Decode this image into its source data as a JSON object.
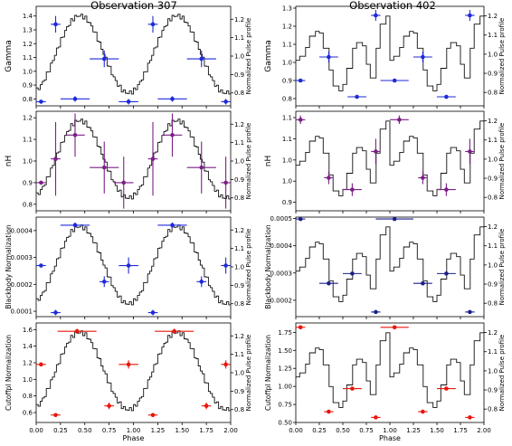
{
  "columns": [
    {
      "title": "Observation 307"
    },
    {
      "title": "Observation 402"
    }
  ],
  "chart_data": [
    {
      "type": "scatter",
      "panel": "obs307-gamma",
      "title": "Observation 307",
      "xlabel": "",
      "ylabel": "Gamma",
      "y2label": "Normalized Pulse profile",
      "xlim": [
        0,
        2
      ],
      "ylim": [
        0.75,
        1.47
      ],
      "y2lim": [
        0.73,
        1.27
      ],
      "xticks": [],
      "yticks": [
        0.8,
        0.9,
        1.0,
        1.1,
        1.2,
        1.3,
        1.4
      ],
      "y2ticks": [
        0.8,
        0.9,
        1.0,
        1.1,
        1.2
      ],
      "profile_shape": "sine",
      "color": "#1f2ad9",
      "points": [
        {
          "x": 0.05,
          "y": 0.78,
          "xerr": 0.05,
          "yerr": 0.0
        },
        {
          "x": 0.2,
          "y": 1.34,
          "xerr": 0.05,
          "yerr": 0.06
        },
        {
          "x": 0.4,
          "y": 0.8,
          "xerr": 0.15,
          "yerr": 0.02
        },
        {
          "x": 0.7,
          "y": 1.09,
          "xerr": 0.15,
          "yerr": 0.06
        },
        {
          "x": 0.95,
          "y": 0.78,
          "xerr": 0.1,
          "yerr": 0.02
        },
        {
          "x": 1.2,
          "y": 1.34,
          "xerr": 0.05,
          "yerr": 0.06
        },
        {
          "x": 1.4,
          "y": 0.8,
          "xerr": 0.15,
          "yerr": 0.02
        },
        {
          "x": 1.7,
          "y": 1.09,
          "xerr": 0.15,
          "yerr": 0.06
        },
        {
          "x": 1.95,
          "y": 0.78,
          "xerr": 0.05,
          "yerr": 0.02
        }
      ]
    },
    {
      "type": "scatter",
      "panel": "obs402-gamma",
      "title": "Observation 402",
      "xlabel": "",
      "ylabel": "Gamma",
      "y2label": "Normalized Pulse profile",
      "xlim": [
        0,
        2
      ],
      "ylim": [
        0.76,
        1.31
      ],
      "y2lim": [
        0.73,
        1.25
      ],
      "xticks": [],
      "yticks": [
        0.8,
        0.9,
        1.0,
        1.1,
        1.2,
        1.3
      ],
      "y2ticks": [
        0.8,
        0.9,
        1.0,
        1.1,
        1.2
      ],
      "profile_shape": "steps",
      "color": "#1f2ad9",
      "points": [
        {
          "x": 0.05,
          "y": 0.9,
          "xerr": 0.05,
          "yerr": 0.0
        },
        {
          "x": 0.35,
          "y": 1.03,
          "xerr": 0.1,
          "yerr": 0.03
        },
        {
          "x": 0.65,
          "y": 0.81,
          "xerr": 0.1,
          "yerr": 0.01
        },
        {
          "x": 0.85,
          "y": 1.26,
          "xerr": 0.05,
          "yerr": 0.03
        },
        {
          "x": 1.05,
          "y": 0.9,
          "xerr": 0.15,
          "yerr": 0.0
        },
        {
          "x": 1.35,
          "y": 1.03,
          "xerr": 0.1,
          "yerr": 0.03
        },
        {
          "x": 1.6,
          "y": 0.81,
          "xerr": 0.1,
          "yerr": 0.01
        },
        {
          "x": 1.85,
          "y": 1.26,
          "xerr": 0.05,
          "yerr": 0.03
        }
      ]
    },
    {
      "type": "scatter",
      "panel": "obs307-nh",
      "xlabel": "",
      "ylabel": "nH",
      "y2label": "Normalized Pulse profile",
      "xlim": [
        0,
        2
      ],
      "ylim": [
        0.77,
        1.23
      ],
      "y2lim": [
        0.73,
        1.27
      ],
      "xticks": [],
      "yticks": [
        0.8,
        0.9,
        1.0,
        1.1,
        1.2
      ],
      "y2ticks": [
        0.8,
        0.9,
        1.0,
        1.1,
        1.2
      ],
      "profile_shape": "sine",
      "color": "#7b1f86",
      "points": [
        {
          "x": 0.05,
          "y": 0.9,
          "xerr": 0.05,
          "yerr": 0.0
        },
        {
          "x": 0.2,
          "y": 1.01,
          "xerr": 0.05,
          "yerr": 0.17
        },
        {
          "x": 0.4,
          "y": 1.12,
          "xerr": 0.1,
          "yerr": 0.1
        },
        {
          "x": 0.7,
          "y": 0.97,
          "xerr": 0.15,
          "yerr": 0.12
        },
        {
          "x": 0.9,
          "y": 0.9,
          "xerr": 0.1,
          "yerr": 0.12
        },
        {
          "x": 1.2,
          "y": 1.01,
          "xerr": 0.05,
          "yerr": 0.17
        },
        {
          "x": 1.4,
          "y": 1.12,
          "xerr": 0.1,
          "yerr": 0.1
        },
        {
          "x": 1.7,
          "y": 0.97,
          "xerr": 0.15,
          "yerr": 0.12
        },
        {
          "x": 1.95,
          "y": 0.9,
          "xerr": 0.05,
          "yerr": 0.12
        }
      ]
    },
    {
      "type": "scatter",
      "panel": "obs402-nh",
      "xlabel": "",
      "ylabel": "nH",
      "y2label": "Normalized Pulse profile",
      "xlim": [
        0,
        2
      ],
      "ylim": [
        0.88,
        1.115
      ],
      "y2lim": [
        0.73,
        1.25
      ],
      "xticks": [],
      "yticks": [
        0.9,
        0.95,
        1.0,
        1.05,
        1.1
      ],
      "y2ticks": [
        0.8,
        0.9,
        1.0,
        1.1,
        1.2
      ],
      "profile_shape": "steps",
      "color": "#7b1f86",
      "points": [
        {
          "x": 0.05,
          "y": 1.095,
          "xerr": 0.05,
          "yerr": 0.01
        },
        {
          "x": 0.35,
          "y": 0.958,
          "xerr": 0.05,
          "yerr": 0.015
        },
        {
          "x": 0.6,
          "y": 0.93,
          "xerr": 0.1,
          "yerr": 0.015
        },
        {
          "x": 0.85,
          "y": 1.02,
          "xerr": 0.05,
          "yerr": 0.03
        },
        {
          "x": 1.1,
          "y": 1.095,
          "xerr": 0.1,
          "yerr": 0.01
        },
        {
          "x": 1.35,
          "y": 0.958,
          "xerr": 0.05,
          "yerr": 0.015
        },
        {
          "x": 1.6,
          "y": 0.93,
          "xerr": 0.1,
          "yerr": 0.015
        },
        {
          "x": 1.85,
          "y": 1.02,
          "xerr": 0.05,
          "yerr": 0.03
        }
      ]
    },
    {
      "type": "scatter",
      "panel": "obs307-blackbody",
      "xlabel": "",
      "ylabel": "Blackbody Normalization",
      "y2label": "Normalized Pulse profile",
      "xlim": [
        0,
        2
      ],
      "ylim": [
        8e-05,
        0.00045
      ],
      "y2lim": [
        0.73,
        1.27
      ],
      "xticks": [],
      "yticks": [
        0.0001,
        0.0002,
        0.0003,
        0.0004
      ],
      "ytick_labels": [
        "0.0001",
        "0.0002",
        "0.0003",
        "0.0004"
      ],
      "y2ticks": [
        0.8,
        0.9,
        1.0,
        1.1,
        1.2
      ],
      "profile_shape": "sine",
      "color": "#1f2ad9",
      "points": [
        {
          "x": 0.05,
          "y": 0.00027,
          "xerr": 0.05,
          "yerr": 0.0
        },
        {
          "x": 0.2,
          "y": 9.5e-05,
          "xerr": 0.05,
          "yerr": 1e-05
        },
        {
          "x": 0.4,
          "y": 0.00042,
          "xerr": 0.15,
          "yerr": 1e-05
        },
        {
          "x": 0.7,
          "y": 0.00021,
          "xerr": 0.05,
          "yerr": 2e-05
        },
        {
          "x": 0.95,
          "y": 0.00027,
          "xerr": 0.1,
          "yerr": 3e-05
        },
        {
          "x": 1.2,
          "y": 9.5e-05,
          "xerr": 0.05,
          "yerr": 1e-05
        },
        {
          "x": 1.4,
          "y": 0.00042,
          "xerr": 0.15,
          "yerr": 1e-05
        },
        {
          "x": 1.7,
          "y": 0.00021,
          "xerr": 0.05,
          "yerr": 2e-05
        },
        {
          "x": 1.95,
          "y": 0.00027,
          "xerr": 0.05,
          "yerr": 3e-05
        }
      ]
    },
    {
      "type": "scatter",
      "panel": "obs402-blackbody",
      "xlabel": "",
      "ylabel": "Blackbody Normalization",
      "y2label": "Normalized Pulse profile",
      "xlim": [
        0,
        2
      ],
      "ylim": [
        0.00014,
        0.000505
      ],
      "y2lim": [
        0.73,
        1.25
      ],
      "xticks": [],
      "yticks": [
        0.0002,
        0.0003,
        0.0004,
        0.0005
      ],
      "ytick_labels": [
        "0.0002",
        "0.0003",
        "0.0004",
        "0.0005"
      ],
      "y2ticks": [
        0.8,
        0.9,
        1.0,
        1.1,
        1.2
      ],
      "profile_shape": "steps",
      "color": "#1b1f8a",
      "points": [
        {
          "x": 0.05,
          "y": 0.000498,
          "xerr": 0.05,
          "yerr": 0.0
        },
        {
          "x": 0.35,
          "y": 0.000262,
          "xerr": 0.1,
          "yerr": 3e-06
        },
        {
          "x": 0.6,
          "y": 0.000298,
          "xerr": 0.1,
          "yerr": 3e-06
        },
        {
          "x": 0.85,
          "y": 0.000157,
          "xerr": 0.05,
          "yerr": 3e-06
        },
        {
          "x": 1.05,
          "y": 0.000498,
          "xerr": 0.2,
          "yerr": 3e-06
        },
        {
          "x": 1.35,
          "y": 0.000262,
          "xerr": 0.1,
          "yerr": 3e-06
        },
        {
          "x": 1.6,
          "y": 0.000298,
          "xerr": 0.1,
          "yerr": 3e-06
        },
        {
          "x": 1.85,
          "y": 0.000157,
          "xerr": 0.05,
          "yerr": 3e-06
        }
      ]
    },
    {
      "type": "scatter",
      "panel": "obs307-cutoffpl",
      "xlabel": "Phase",
      "ylabel": "Cutoffpl Normalization",
      "y2label": "Normalized Pulse profile",
      "xlim": [
        0,
        2
      ],
      "ylim": [
        0.48,
        1.68
      ],
      "y2lim": [
        0.73,
        1.27
      ],
      "xticks": [
        0.0,
        0.25,
        0.5,
        0.75,
        1.0,
        1.25,
        1.5,
        1.75,
        2.0
      ],
      "xtick_labels": [
        "0.00",
        "0.25",
        "0.50",
        "0.75",
        "1.00",
        "1.25",
        "1.50",
        "1.75",
        "2.00"
      ],
      "yticks": [
        0.6,
        0.8,
        1.0,
        1.2,
        1.4,
        1.6
      ],
      "y2ticks": [
        0.8,
        0.9,
        1.0,
        1.1,
        1.2
      ],
      "profile_shape": "sine",
      "color": "#e8160c",
      "points": [
        {
          "x": 0.05,
          "y": 1.18,
          "xerr": 0.05,
          "yerr": 0.0
        },
        {
          "x": 0.2,
          "y": 0.57,
          "xerr": 0.05,
          "yerr": 0.02
        },
        {
          "x": 0.42,
          "y": 1.58,
          "xerr": 0.2,
          "yerr": 0.03
        },
        {
          "x": 0.75,
          "y": 0.68,
          "xerr": 0.05,
          "yerr": 0.04
        },
        {
          "x": 0.95,
          "y": 1.18,
          "xerr": 0.1,
          "yerr": 0.05
        },
        {
          "x": 1.2,
          "y": 0.57,
          "xerr": 0.05,
          "yerr": 0.02
        },
        {
          "x": 1.42,
          "y": 1.58,
          "xerr": 0.2,
          "yerr": 0.03
        },
        {
          "x": 1.75,
          "y": 0.68,
          "xerr": 0.05,
          "yerr": 0.04
        },
        {
          "x": 1.95,
          "y": 1.18,
          "xerr": 0.05,
          "yerr": 0.05
        }
      ]
    },
    {
      "type": "scatter",
      "panel": "obs402-cutoffpl",
      "xlabel": "Phase",
      "ylabel": "Cutoffpl Normalization",
      "y2label": "Normalized Pulse profile",
      "xlim": [
        0,
        2
      ],
      "ylim": [
        0.5,
        1.88
      ],
      "y2lim": [
        0.73,
        1.25
      ],
      "xticks": [
        0.0,
        0.25,
        0.5,
        0.75,
        1.0,
        1.25,
        1.5,
        1.75,
        2.0
      ],
      "xtick_labels": [
        "0.00",
        "0.25",
        "0.50",
        "0.75",
        "1.00",
        "1.25",
        "1.50",
        "1.75",
        "2.00"
      ],
      "yticks": [
        0.5,
        0.75,
        1.0,
        1.25,
        1.5,
        1.75
      ],
      "ytick_labels": [
        "0.50",
        "0.75",
        "1.00",
        "1.25",
        "1.50",
        "1.75"
      ],
      "y2ticks": [
        0.8,
        0.9,
        1.0,
        1.1,
        1.2
      ],
      "profile_shape": "steps",
      "color": "#e8160c",
      "points": [
        {
          "x": 0.05,
          "y": 1.82,
          "xerr": 0.05,
          "yerr": 0.0
        },
        {
          "x": 0.35,
          "y": 0.65,
          "xerr": 0.05,
          "yerr": 0.02
        },
        {
          "x": 0.6,
          "y": 0.97,
          "xerr": 0.1,
          "yerr": 0.01
        },
        {
          "x": 0.85,
          "y": 0.57,
          "xerr": 0.05,
          "yerr": 0.01
        },
        {
          "x": 1.05,
          "y": 1.82,
          "xerr": 0.15,
          "yerr": 0.01
        },
        {
          "x": 1.35,
          "y": 0.65,
          "xerr": 0.05,
          "yerr": 0.02
        },
        {
          "x": 1.6,
          "y": 0.97,
          "xerr": 0.1,
          "yerr": 0.01
        },
        {
          "x": 1.85,
          "y": 0.57,
          "xerr": 0.05,
          "yerr": 0.01
        }
      ]
    }
  ]
}
